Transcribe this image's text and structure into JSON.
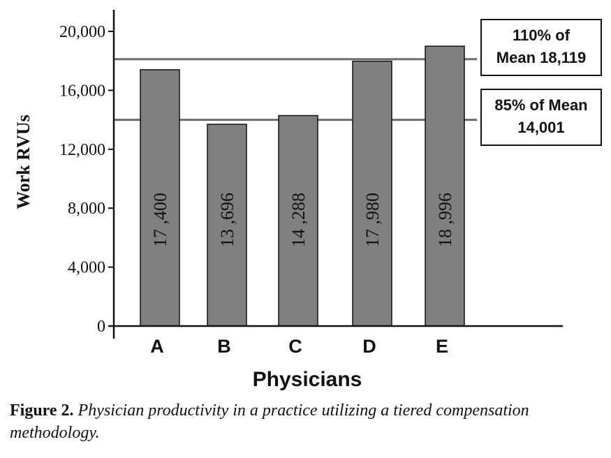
{
  "chart_data": {
    "type": "bar",
    "categories": [
      "A",
      "B",
      "C",
      "D",
      "E"
    ],
    "values": [
      17400,
      13696,
      14288,
      17980,
      18996
    ],
    "data_labels": [
      "17 ,400",
      "13 ,696",
      "14 ,288",
      "17 ,980",
      "18 ,996"
    ],
    "xlabel": "Physicians",
    "ylabel": "Work RVUs",
    "ylim": [
      0,
      20000
    ],
    "yticks": [
      0,
      4000,
      8000,
      12000,
      16000,
      20000
    ],
    "ytick_labels": [
      "0",
      "4,000",
      "8,000",
      "12,000",
      "16,000",
      "20,000"
    ],
    "bar_color": "#808080",
    "grid": false,
    "reference_lines": [
      {
        "value": 18119,
        "label_lines": [
          "110% of",
          "Mean 18,119"
        ]
      },
      {
        "value": 14001,
        "label_lines": [
          "85% of Mean",
          "14,001"
        ]
      }
    ]
  },
  "caption": {
    "figure": "Figure 2.",
    "text": " Physician productivity in a practice utilizing a tiered compensation methodology."
  }
}
